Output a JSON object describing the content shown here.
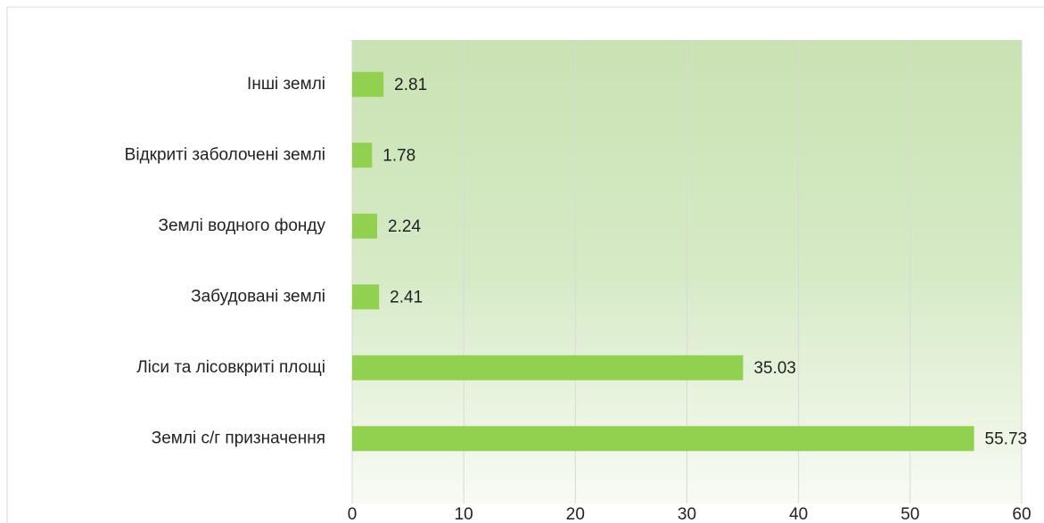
{
  "chart_data": {
    "type": "hbar",
    "categories": [
      "Інші землі",
      "Відкриті заболочені землі",
      "Землі водного фонду",
      "Забудовані землі",
      "Ліси та лісовкриті площі",
      "Землі с/г призначення"
    ],
    "values": [
      2.81,
      1.78,
      2.24,
      2.41,
      35.03,
      55.73
    ],
    "color": "#92d050",
    "xlim": [
      0,
      60
    ],
    "xticks": [
      0,
      10,
      20,
      30,
      40,
      50,
      60
    ],
    "grid": true
  }
}
